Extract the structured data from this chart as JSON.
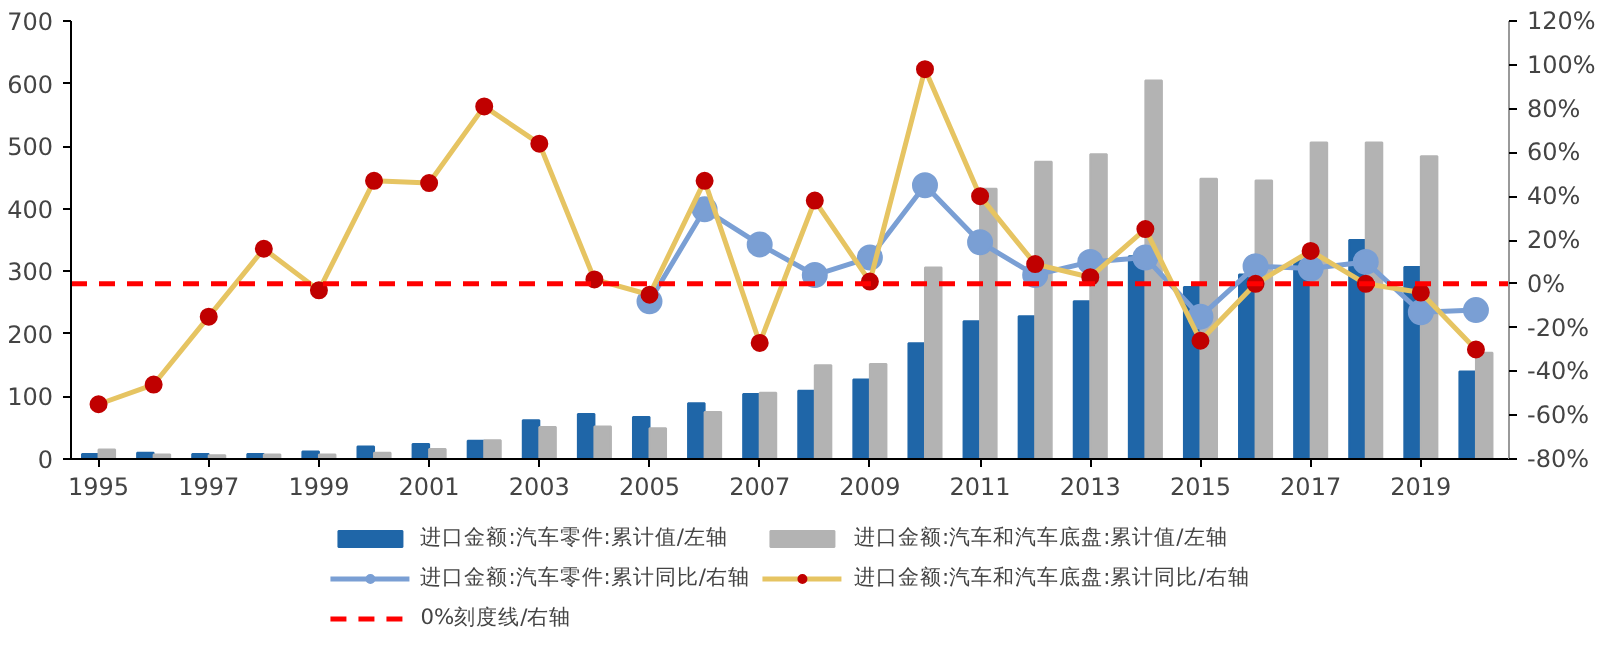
{
  "chart_data": {
    "type": "bar",
    "x": [
      1995,
      1996,
      1997,
      1998,
      1999,
      2000,
      2001,
      2002,
      2003,
      2004,
      2005,
      2006,
      2007,
      2008,
      2009,
      2010,
      2011,
      2012,
      2013,
      2014,
      2015,
      2016,
      2017,
      2018,
      2019,
      2020
    ],
    "xlim": [
      1994.5,
      2020.6
    ],
    "xticks": [
      1995,
      1997,
      1999,
      2001,
      2003,
      2005,
      2007,
      2009,
      2011,
      2013,
      2015,
      2017,
      2019
    ],
    "ylim": [
      0,
      700
    ],
    "yticks": [
      0,
      100,
      200,
      300,
      400,
      500,
      600,
      700
    ],
    "y2lim": [
      -80,
      120
    ],
    "y2ticks": [
      {
        "value": -80,
        "label": "-80%"
      },
      {
        "value": -60,
        "label": "-60%"
      },
      {
        "value": -40,
        "label": "-40%"
      },
      {
        "value": -20,
        "label": "-20%"
      },
      {
        "value": 0,
        "label": "0%"
      },
      {
        "value": 20,
        "label": "20%"
      },
      {
        "value": 40,
        "label": "40%"
      },
      {
        "value": 60,
        "label": "60%"
      },
      {
        "value": 80,
        "label": "80%"
      },
      {
        "value": 100,
        "label": "100%"
      },
      {
        "value": 120,
        "label": "120%"
      }
    ],
    "grid": false,
    "legend": "bottom",
    "series": [
      {
        "name": "进口金额:汽车零件:累计值/左轴",
        "color": "#1f66a8",
        "values": [
          8,
          10,
          8,
          8,
          12,
          20,
          24,
          29,
          62,
          72,
          67,
          89,
          104,
          109,
          127,
          185,
          220,
          228,
          252,
          324,
          275,
          295,
          317,
          350,
          307,
          140
        ]
      },
      {
        "name": "进口金额:汽车和汽车底盘:累计值/左轴",
        "color": "#b3b3b3",
        "values": [
          15,
          7,
          6,
          7,
          7,
          10,
          16,
          30,
          51,
          52,
          49,
          75,
          106,
          150,
          152,
          306,
          432,
          475,
          487,
          605,
          448,
          445,
          506,
          506,
          484,
          170
        ]
      },
      {
        "name": "进口金额:汽车零件:累计同比/右轴",
        "type": "line",
        "axis": "y2",
        "color": "#7a9fd4",
        "marker": "circle",
        "values": [
          null,
          null,
          null,
          null,
          null,
          null,
          null,
          null,
          null,
          null,
          -8,
          34,
          18,
          4,
          12,
          45,
          19,
          4,
          10,
          12,
          -15,
          8,
          7,
          10,
          -13,
          -12
        ]
      },
      {
        "name": "进口金额:汽车和汽车底盘:累计同比/右轴",
        "type": "line",
        "axis": "y2",
        "color": "#e6c462",
        "colors": [
          "#c00000",
          "#c00000",
          "#c00000",
          "#c00000",
          "#c00000",
          "#c00000",
          "#c00000",
          "#c00000",
          "#c00000",
          "#c00000",
          "#c00000",
          "#c00000",
          "#c00000",
          "#c00000",
          "#c00000",
          "#c00000",
          "#c00000",
          "#c00000",
          "#c00000",
          "#c00000",
          "#c00000",
          "#c00000",
          "#c00000",
          "#c00000",
          "#c00000",
          "#c00000"
        ],
        "marker": "circle",
        "values": [
          -55,
          -46,
          -15,
          16,
          -3,
          47,
          46,
          81,
          64,
          2,
          -5,
          47,
          -27,
          38,
          1,
          98,
          40,
          9,
          3,
          25,
          -26,
          0,
          15,
          0,
          -4,
          -30
        ]
      }
    ],
    "ref_lines": [
      {
        "axis": "y2",
        "value": 0,
        "label": "0%刻度线/右轴",
        "color": "#ff0000",
        "line_style": "dashed"
      }
    ]
  }
}
